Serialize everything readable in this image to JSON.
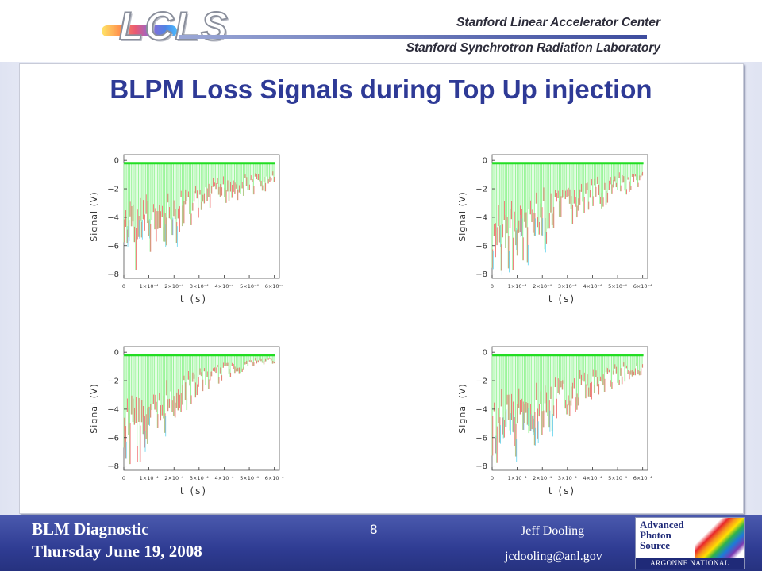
{
  "header": {
    "logo_text": "LCLS",
    "slac": "Stanford Linear Accelerator Center",
    "ssrl": "Stanford Synchrotron Radiation Laboratory"
  },
  "title": "BLPM Loss Signals during Top Up injection",
  "footer": {
    "left_line1": "BLM Diagnostic",
    "left_line2": "Thursday June 19, 2008",
    "page": "8",
    "author": "Jeff Dooling",
    "email": "jcdooling@anl.gov",
    "aps_logo_text": [
      "Advanced",
      "Photon",
      "Source"
    ],
    "aps_lab": "ARGONNE NATIONAL LABORATORY"
  },
  "colors": {
    "title": "#2e3a96",
    "footer_bg": "#2f3c93",
    "trace_green": "#22dd22",
    "trace_light_green": "#9bf59b",
    "trace_red": "#f07070",
    "trace_cyan": "#70d8f0"
  },
  "chart_data": [
    {
      "type": "line",
      "title": "",
      "xlabel": "t (s)",
      "ylabel": "Signal (V)",
      "xlim": [
        0,
        0.00062
      ],
      "ylim": [
        -8.3,
        0.4
      ],
      "xticks": [
        "0",
        "1×10⁻⁴",
        "2×10⁻⁴",
        "3×10⁻⁴",
        "4×10⁻⁴",
        "5×10⁻⁴",
        "6×10⁻⁴"
      ],
      "yticks": [
        "0",
        "−2",
        "−4",
        "−6",
        "−8"
      ],
      "baseline": -0.2,
      "pulse_envelope": {
        "t": [
          0,
          5e-05,
          0.0001,
          0.0002,
          0.0003,
          0.0004,
          0.0005,
          0.0006
        ],
        "min_signal": [
          -8.0,
          -8.0,
          -7.5,
          -6.0,
          -4.5,
          -3.2,
          -2.5,
          -2.2
        ]
      }
    },
    {
      "type": "line",
      "title": "",
      "xlabel": "t (s)",
      "ylabel": "Signal (V)",
      "xlim": [
        0,
        0.00062
      ],
      "ylim": [
        -8.3,
        0.4
      ],
      "xticks": [
        "0",
        "1×10⁻⁴",
        "2×10⁻⁴",
        "3×10⁻⁴",
        "4×10⁻⁴",
        "5×10⁻⁴",
        "6×10⁻⁴"
      ],
      "yticks": [
        "0",
        "−2",
        "−4",
        "−6",
        "−8"
      ],
      "baseline": -0.2,
      "pulse_envelope": {
        "t": [
          0,
          5e-05,
          0.0001,
          0.0002,
          0.0003,
          0.0004,
          0.0005,
          0.0006
        ],
        "min_signal": [
          -8.0,
          -8.0,
          -7.8,
          -6.4,
          -5.0,
          -3.8,
          -2.8,
          -2.3
        ]
      }
    },
    {
      "type": "line",
      "title": "",
      "xlabel": "t (s)",
      "ylabel": "Signal (V)",
      "xlim": [
        0,
        0.00062
      ],
      "ylim": [
        -8.3,
        0.4
      ],
      "xticks": [
        "0",
        "1×10⁻⁴",
        "2×10⁻⁴",
        "3×10⁻⁴",
        "4×10⁻⁴",
        "5×10⁻⁴",
        "6×10⁻⁴"
      ],
      "yticks": [
        "0",
        "−2",
        "−4",
        "−6",
        "−8"
      ],
      "baseline": -0.2,
      "pulse_envelope": {
        "t": [
          0,
          5e-05,
          0.0001,
          0.0002,
          0.0003,
          0.0004,
          0.0005,
          0.0006
        ],
        "min_signal": [
          -8.0,
          -8.0,
          -7.2,
          -5.0,
          -3.2,
          -2.0,
          -1.2,
          -0.8
        ]
      }
    },
    {
      "type": "line",
      "title": "",
      "xlabel": "t (s)",
      "ylabel": "Signal (V)",
      "xlim": [
        0,
        0.00062
      ],
      "ylim": [
        -8.3,
        0.4
      ],
      "xticks": [
        "0",
        "1×10⁻⁴",
        "2×10⁻⁴",
        "3×10⁻⁴",
        "4×10⁻⁴",
        "5×10⁻⁴",
        "6×10⁻⁴"
      ],
      "yticks": [
        "0",
        "−2",
        "−4",
        "−6",
        "−8"
      ],
      "baseline": -0.2,
      "pulse_envelope": {
        "t": [
          0,
          5e-05,
          0.0001,
          0.0002,
          0.0003,
          0.0004,
          0.0005,
          0.0006
        ],
        "min_signal": [
          -8.0,
          -8.0,
          -7.8,
          -6.2,
          -4.6,
          -3.4,
          -2.4,
          -1.6
        ]
      }
    }
  ]
}
